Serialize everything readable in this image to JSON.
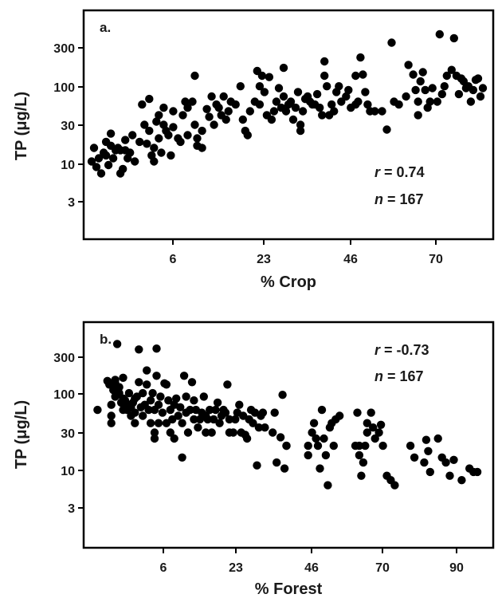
{
  "chart_data": [
    {
      "type": "scatter",
      "panel_label": "a.",
      "xlabel": "% Crop",
      "ylabel": "TP (μg/L)",
      "x_ticks": [
        "6",
        "23",
        "46",
        "70"
      ],
      "y_ticks": [
        "300",
        "100",
        "30",
        "10",
        "3"
      ],
      "y_scale": "log",
      "stats": {
        "r_label": "r",
        "r_value": "= 0.74",
        "n_label": "n",
        "n_value": "= 167"
      },
      "stats_placement": "bottom-right",
      "points": [
        [
          0,
          10
        ],
        [
          0.5,
          15
        ],
        [
          1,
          8.5
        ],
        [
          1.5,
          11
        ],
        [
          2,
          7
        ],
        [
          2.5,
          13
        ],
        [
          3,
          18
        ],
        [
          3,
          12
        ],
        [
          3.5,
          9
        ],
        [
          4,
          23
        ],
        [
          4,
          16
        ],
        [
          4.5,
          11
        ],
        [
          5,
          14
        ],
        [
          5.5,
          15
        ],
        [
          6,
          7
        ],
        [
          6,
          14
        ],
        [
          6.5,
          8
        ],
        [
          7,
          19
        ],
        [
          7,
          14
        ],
        [
          7.5,
          11
        ],
        [
          8,
          13
        ],
        [
          8.5,
          22
        ],
        [
          9,
          10
        ],
        [
          10,
          18
        ],
        [
          10.5,
          55
        ],
        [
          11,
          30
        ],
        [
          11.5,
          17
        ],
        [
          12,
          65
        ],
        [
          12,
          25
        ],
        [
          12.5,
          12
        ],
        [
          13,
          10
        ],
        [
          13,
          15
        ],
        [
          13.5,
          33
        ],
        [
          14,
          20
        ],
        [
          14,
          40
        ],
        [
          14.5,
          13
        ],
        [
          15,
          50
        ],
        [
          15,
          30
        ],
        [
          15.5,
          25
        ],
        [
          16,
          22
        ],
        [
          16.5,
          12
        ],
        [
          17,
          28
        ],
        [
          17,
          45
        ],
        [
          18,
          20
        ],
        [
          18.5,
          18
        ],
        [
          19,
          40
        ],
        [
          19.5,
          60
        ],
        [
          20,
          50
        ],
        [
          20,
          22
        ],
        [
          21,
          60
        ],
        [
          21.5,
          130
        ],
        [
          21.5,
          30
        ],
        [
          22,
          16
        ],
        [
          22,
          20
        ],
        [
          23,
          25
        ],
        [
          23,
          15
        ],
        [
          24,
          48
        ],
        [
          24.5,
          38
        ],
        [
          25,
          70
        ],
        [
          25.5,
          30
        ],
        [
          26,
          55
        ],
        [
          26.5,
          50
        ],
        [
          27,
          40
        ],
        [
          27.5,
          70
        ],
        [
          28,
          35
        ],
        [
          28.5,
          45
        ],
        [
          29,
          60
        ],
        [
          30,
          55
        ],
        [
          31,
          95
        ],
        [
          31.5,
          35
        ],
        [
          32,
          25
        ],
        [
          32.5,
          22
        ],
        [
          33,
          45
        ],
        [
          34,
          60
        ],
        [
          34.5,
          150
        ],
        [
          35,
          95
        ],
        [
          35,
          55
        ],
        [
          35.5,
          130
        ],
        [
          36,
          80
        ],
        [
          36.5,
          40
        ],
        [
          37,
          125
        ],
        [
          37.5,
          35
        ],
        [
          38,
          45
        ],
        [
          38.5,
          60
        ],
        [
          39,
          90
        ],
        [
          39.5,
          50
        ],
        [
          40,
          165
        ],
        [
          40,
          70
        ],
        [
          40.5,
          45
        ],
        [
          41,
          55
        ],
        [
          41.5,
          60
        ],
        [
          42,
          35
        ],
        [
          42.5,
          50
        ],
        [
          43,
          80
        ],
        [
          43.5,
          25
        ],
        [
          43.5,
          30
        ],
        [
          44,
          45
        ],
        [
          44.5,
          65
        ],
        [
          45,
          70
        ],
        [
          45.5,
          60
        ],
        [
          46,
          55
        ],
        [
          46.5,
          55
        ],
        [
          47,
          75
        ],
        [
          47.5,
          50
        ],
        [
          48,
          40
        ],
        [
          48.5,
          200
        ],
        [
          48.5,
          130
        ],
        [
          49,
          95
        ],
        [
          49.5,
          40
        ],
        [
          50,
          55
        ],
        [
          50.5,
          45
        ],
        [
          51,
          80
        ],
        [
          51.5,
          95
        ],
        [
          52,
          60
        ],
        [
          53,
          70
        ],
        [
          53.5,
          85
        ],
        [
          54,
          50
        ],
        [
          55,
          130
        ],
        [
          55,
          55
        ],
        [
          55.5,
          60
        ],
        [
          56,
          225
        ],
        [
          56.5,
          135
        ],
        [
          57,
          80
        ],
        [
          57.5,
          55
        ],
        [
          58,
          45
        ],
        [
          59,
          45
        ],
        [
          60.5,
          45
        ],
        [
          61.5,
          26
        ],
        [
          62.5,
          350
        ],
        [
          63,
          60
        ],
        [
          64,
          55
        ],
        [
          65.5,
          70
        ],
        [
          66,
          180
        ],
        [
          67,
          135
        ],
        [
          67.5,
          85
        ],
        [
          68,
          60
        ],
        [
          68,
          40
        ],
        [
          68.5,
          110
        ],
        [
          69,
          145
        ],
        [
          69.5,
          85
        ],
        [
          70,
          50
        ],
        [
          70.5,
          60
        ],
        [
          71,
          90
        ],
        [
          72,
          60
        ],
        [
          72.5,
          450
        ],
        [
          73,
          75
        ],
        [
          73.5,
          95
        ],
        [
          74,
          130
        ],
        [
          75,
          155
        ],
        [
          75.5,
          400
        ],
        [
          76,
          130
        ],
        [
          76.5,
          75
        ],
        [
          77,
          120
        ],
        [
          77.5,
          110
        ],
        [
          78,
          90
        ],
        [
          78.5,
          95
        ],
        [
          79,
          60
        ],
        [
          79.5,
          85
        ],
        [
          80,
          115
        ],
        [
          80.5,
          120
        ],
        [
          81,
          70
        ],
        [
          81.5,
          90
        ]
      ]
    },
    {
      "type": "scatter",
      "panel_label": "b.",
      "xlabel": "% Forest",
      "ylabel": "TP (μg/L)",
      "x_ticks": [
        "6",
        "23",
        "46",
        "70",
        "90"
      ],
      "y_ticks": [
        "300",
        "100",
        "30",
        "10",
        "3"
      ],
      "y_scale": "log",
      "stats": {
        "r_label": "r",
        "r_value": "= -0.73",
        "n_label": "n",
        "n_value": "= 167"
      },
      "stats_placement": "top-right",
      "points": [
        [
          0.5,
          60
        ],
        [
          3,
          145
        ],
        [
          3.5,
          130
        ],
        [
          4,
          40
        ],
        [
          4,
          50
        ],
        [
          4,
          70
        ],
        [
          4.5,
          110
        ],
        [
          5,
          90
        ],
        [
          5,
          135
        ],
        [
          5,
          150
        ],
        [
          5.5,
          450
        ],
        [
          6,
          100
        ],
        [
          6,
          120
        ],
        [
          6.5,
          75
        ],
        [
          7,
          60
        ],
        [
          7,
          85
        ],
        [
          7,
          160
        ],
        [
          7.5,
          80
        ],
        [
          8,
          60
        ],
        [
          8,
          70
        ],
        [
          8.5,
          100
        ],
        [
          9,
          50
        ],
        [
          9,
          65
        ],
        [
          9.5,
          75
        ],
        [
          10,
          40
        ],
        [
          10,
          55
        ],
        [
          10,
          85
        ],
        [
          10.5,
          90
        ],
        [
          11,
          140
        ],
        [
          11,
          380
        ],
        [
          11.5,
          65
        ],
        [
          12,
          50
        ],
        [
          12,
          100
        ],
        [
          12.5,
          70
        ],
        [
          13,
          200
        ],
        [
          13,
          130
        ],
        [
          13.5,
          60
        ],
        [
          14,
          40
        ],
        [
          14,
          80
        ],
        [
          14.5,
          100
        ],
        [
          15,
          30
        ],
        [
          15,
          25
        ],
        [
          15,
          60
        ],
        [
          15.5,
          390
        ],
        [
          15.5,
          170
        ],
        [
          16,
          40
        ],
        [
          16,
          70
        ],
        [
          16.5,
          90
        ],
        [
          17,
          55
        ],
        [
          17.5,
          135
        ],
        [
          18,
          130
        ],
        [
          18,
          40
        ],
        [
          18.5,
          80
        ],
        [
          19,
          30
        ],
        [
          19,
          60
        ],
        [
          19.5,
          45
        ],
        [
          20,
          25
        ],
        [
          20,
          70
        ],
        [
          20.5,
          85
        ],
        [
          21,
          50
        ],
        [
          21.5,
          65
        ],
        [
          22,
          14
        ],
        [
          22,
          40
        ],
        [
          22.5,
          170
        ],
        [
          23,
          90
        ],
        [
          23,
          55
        ],
        [
          23.5,
          30
        ],
        [
          24,
          60
        ],
        [
          24.5,
          140
        ],
        [
          25,
          45
        ],
        [
          25,
          80
        ],
        [
          25.5,
          60
        ],
        [
          26,
          35
        ],
        [
          26.5,
          45
        ],
        [
          27,
          55
        ],
        [
          27.5,
          90
        ],
        [
          28,
          50
        ],
        [
          28,
          30
        ],
        [
          28.5,
          45
        ],
        [
          29,
          60
        ],
        [
          29.5,
          30
        ],
        [
          30,
          45
        ],
        [
          30.5,
          60
        ],
        [
          31,
          75
        ],
        [
          31.5,
          40
        ],
        [
          32,
          50
        ],
        [
          32.5,
          60
        ],
        [
          33,
          55
        ],
        [
          33.5,
          130
        ],
        [
          34,
          45
        ],
        [
          34,
          30
        ],
        [
          35,
          30
        ],
        [
          35.5,
          45
        ],
        [
          36,
          55
        ],
        [
          36.5,
          70
        ],
        [
          37,
          30
        ],
        [
          37.5,
          50
        ],
        [
          38,
          28
        ],
        [
          38.5,
          25
        ],
        [
          39,
          45
        ],
        [
          39.5,
          60
        ],
        [
          40,
          40
        ],
        [
          40.5,
          55
        ],
        [
          41,
          11
        ],
        [
          41.5,
          35
        ],
        [
          42,
          50
        ],
        [
          42.5,
          55
        ],
        [
          43,
          35
        ],
        [
          45,
          30
        ],
        [
          45.5,
          55
        ],
        [
          46,
          12
        ],
        [
          47,
          26
        ],
        [
          47.5,
          95
        ],
        [
          48,
          10
        ],
        [
          48.5,
          20
        ],
        [
          48.5,
          20
        ],
        [
          54,
          15
        ],
        [
          54,
          20
        ],
        [
          55,
          30
        ],
        [
          55.5,
          40
        ],
        [
          56,
          25
        ],
        [
          56.5,
          20
        ],
        [
          57,
          10
        ],
        [
          57.5,
          60
        ],
        [
          58,
          25
        ],
        [
          58.5,
          15
        ],
        [
          59,
          6
        ],
        [
          59.5,
          35
        ],
        [
          60,
          40
        ],
        [
          60.5,
          20
        ],
        [
          61,
          45
        ],
        [
          62,
          50
        ],
        [
          66,
          20
        ],
        [
          66.5,
          55
        ],
        [
          67,
          20
        ],
        [
          67,
          15
        ],
        [
          67.5,
          8
        ],
        [
          68,
          12
        ],
        [
          68.5,
          20
        ],
        [
          69,
          30
        ],
        [
          69,
          40
        ],
        [
          70,
          55
        ],
        [
          70.5,
          35
        ],
        [
          71,
          25
        ],
        [
          72,
          30
        ],
        [
          72.5,
          38
        ],
        [
          73,
          20
        ],
        [
          74,
          8
        ],
        [
          75,
          7
        ],
        [
          76,
          6
        ],
        [
          80,
          20
        ],
        [
          81,
          14
        ],
        [
          83.5,
          12
        ],
        [
          84,
          24
        ],
        [
          84.5,
          17
        ],
        [
          85,
          9
        ],
        [
          87,
          25
        ],
        [
          88,
          14
        ],
        [
          89,
          12
        ],
        [
          90,
          8
        ],
        [
          91,
          13
        ],
        [
          93,
          7
        ],
        [
          95,
          10
        ],
        [
          96,
          9
        ],
        [
          97,
          9
        ]
      ]
    }
  ]
}
